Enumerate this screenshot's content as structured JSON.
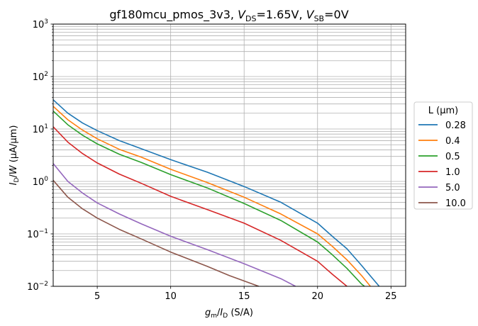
{
  "chart_data": {
    "type": "line",
    "title": {
      "prefix": "gf180mcu_pmos_3v3, ",
      "vds_var": "V",
      "vds_sub": "DS",
      "vds_val": "=1.65V, ",
      "vsb_var": "V",
      "vsb_sub": "SB",
      "vsb_val": "=0V"
    },
    "xlabel": {
      "var": "g",
      "var_sub": "m",
      "slash": "/",
      "var2": "I",
      "var2_sub": "D",
      "unit": " (S/A)"
    },
    "ylabel": {
      "var": "I",
      "var_sub": "D",
      "slash": "/",
      "var2": "W",
      "unit": " (μA/μm)"
    },
    "xlim": [
      2,
      26
    ],
    "ylim": [
      0.01,
      1000
    ],
    "yscale": "log",
    "grid": true,
    "xticks": [
      5,
      10,
      15,
      20,
      25
    ],
    "xtick_labels": [
      "5",
      "10",
      "15",
      "20",
      "25"
    ],
    "yticks": [
      {
        "value": 0.01,
        "base": "10",
        "exp": "−2"
      },
      {
        "value": 0.1,
        "base": "10",
        "exp": "−1"
      },
      {
        "value": 1,
        "base": "10",
        "exp": "0"
      },
      {
        "value": 10,
        "base": "10",
        "exp": "1"
      },
      {
        "value": 100,
        "base": "10",
        "exp": "2"
      },
      {
        "value": 1000,
        "base": "10",
        "exp": "3"
      }
    ],
    "legend": {
      "title": "L (μm)",
      "placement": "outside-right"
    },
    "series": [
      {
        "name": "0.28",
        "color": "#1f77b4",
        "points": [
          [
            2,
            36
          ],
          [
            3,
            20
          ],
          [
            4,
            13
          ],
          [
            5,
            9.3
          ],
          [
            6.5,
            6.0
          ],
          [
            8,
            4.2
          ],
          [
            10,
            2.6
          ],
          [
            12.5,
            1.5
          ],
          [
            15,
            0.8
          ],
          [
            17.5,
            0.4
          ],
          [
            20,
            0.16
          ],
          [
            21,
            0.09
          ],
          [
            22,
            0.052
          ],
          [
            23,
            0.025
          ],
          [
            23.5,
            0.017
          ],
          [
            24.2,
            0.01
          ]
        ]
      },
      {
        "name": "0.4",
        "color": "#ff7f0e",
        "points": [
          [
            2,
            27
          ],
          [
            3,
            15
          ],
          [
            4,
            9.5
          ],
          [
            5,
            6.5
          ],
          [
            6.5,
            4.1
          ],
          [
            8,
            2.9
          ],
          [
            10,
            1.7
          ],
          [
            12.5,
            0.95
          ],
          [
            15,
            0.5
          ],
          [
            17.5,
            0.24
          ],
          [
            20,
            0.1
          ],
          [
            21,
            0.058
          ],
          [
            22,
            0.032
          ],
          [
            23,
            0.016
          ],
          [
            23.6,
            0.01
          ]
        ]
      },
      {
        "name": "0.5",
        "color": "#2ca02c",
        "points": [
          [
            2,
            22
          ],
          [
            3,
            12
          ],
          [
            4,
            7.6
          ],
          [
            5,
            5.2
          ],
          [
            6.5,
            3.3
          ],
          [
            8,
            2.3
          ],
          [
            10,
            1.35
          ],
          [
            12.5,
            0.75
          ],
          [
            15,
            0.38
          ],
          [
            17.5,
            0.18
          ],
          [
            20,
            0.07
          ],
          [
            21,
            0.04
          ],
          [
            22,
            0.022
          ],
          [
            23,
            0.011
          ],
          [
            23.2,
            0.01
          ]
        ]
      },
      {
        "name": "1.0",
        "color": "#d62728",
        "points": [
          [
            2,
            11
          ],
          [
            3,
            5.6
          ],
          [
            4,
            3.4
          ],
          [
            5,
            2.25
          ],
          [
            6.5,
            1.38
          ],
          [
            8,
            0.92
          ],
          [
            10,
            0.52
          ],
          [
            12.5,
            0.29
          ],
          [
            15,
            0.16
          ],
          [
            17.5,
            0.075
          ],
          [
            20,
            0.03
          ],
          [
            21,
            0.017
          ],
          [
            22,
            0.01
          ]
        ]
      },
      {
        "name": "5.0",
        "color": "#9467bd",
        "points": [
          [
            2,
            2.2
          ],
          [
            3,
            1.0
          ],
          [
            4,
            0.6
          ],
          [
            5,
            0.39
          ],
          [
            6.5,
            0.24
          ],
          [
            8,
            0.155
          ],
          [
            10,
            0.09
          ],
          [
            12.5,
            0.05
          ],
          [
            15,
            0.027
          ],
          [
            17.5,
            0.014
          ],
          [
            18.5,
            0.01
          ]
        ]
      },
      {
        "name": "10.0",
        "color": "#8c564b",
        "points": [
          [
            2,
            1.05
          ],
          [
            3,
            0.5
          ],
          [
            4,
            0.3
          ],
          [
            5,
            0.2
          ],
          [
            6.5,
            0.122
          ],
          [
            8,
            0.08
          ],
          [
            10,
            0.045
          ],
          [
            12.5,
            0.024
          ],
          [
            14,
            0.016
          ],
          [
            16,
            0.01
          ]
        ]
      }
    ]
  }
}
